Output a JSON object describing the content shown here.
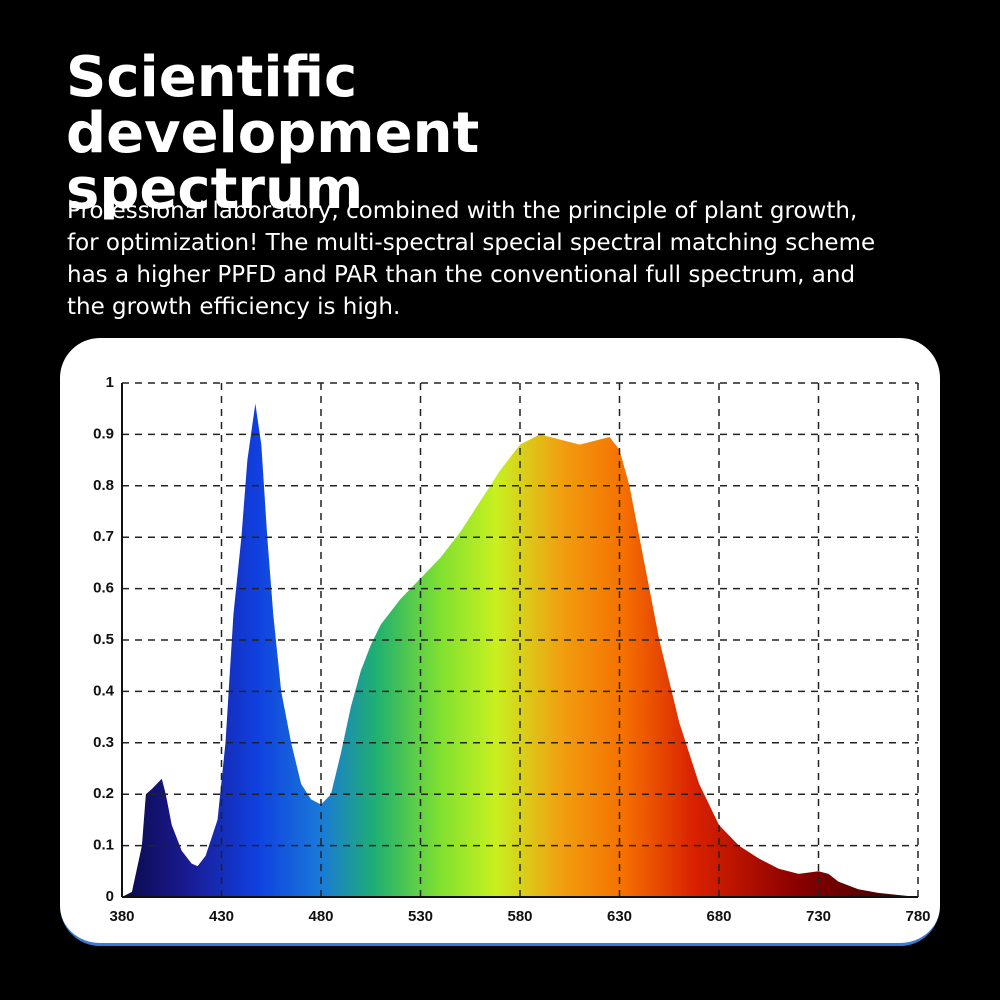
{
  "chart_data": {
    "type": "area",
    "title": "Scientific development spectrum",
    "subtitle": "Professional laboratory, combined with the principle of plant growth, for optimization! The multi-spectral special spectral matching scheme has a higher PPFD and PAR than the conventional full spectrum, and the growth efficiency is high.",
    "x": [
      380,
      385,
      390,
      392,
      395,
      400,
      402,
      405,
      410,
      415,
      418,
      422,
      428,
      432,
      436,
      440,
      443,
      447,
      450,
      453,
      456,
      460,
      465,
      470,
      475,
      480,
      485,
      490,
      495,
      500,
      505,
      510,
      520,
      530,
      540,
      550,
      560,
      570,
      580,
      590,
      600,
      610,
      620,
      625,
      630,
      635,
      640,
      645,
      650,
      660,
      670,
      680,
      690,
      700,
      710,
      720,
      730,
      735,
      740,
      750,
      760,
      770,
      780
    ],
    "values": [
      0,
      0.01,
      0.1,
      0.2,
      0.21,
      0.23,
      0.2,
      0.14,
      0.09,
      0.065,
      0.06,
      0.08,
      0.15,
      0.3,
      0.55,
      0.7,
      0.85,
      0.96,
      0.88,
      0.7,
      0.55,
      0.4,
      0.3,
      0.22,
      0.19,
      0.18,
      0.2,
      0.28,
      0.37,
      0.44,
      0.49,
      0.53,
      0.58,
      0.62,
      0.66,
      0.71,
      0.77,
      0.83,
      0.88,
      0.9,
      0.89,
      0.88,
      0.89,
      0.895,
      0.87,
      0.8,
      0.7,
      0.6,
      0.5,
      0.34,
      0.22,
      0.14,
      0.1,
      0.075,
      0.055,
      0.045,
      0.05,
      0.045,
      0.03,
      0.015,
      0.008,
      0.004,
      0
    ],
    "xlim": [
      380,
      780
    ],
    "xticks": [
      380,
      430,
      480,
      530,
      580,
      630,
      680,
      730,
      780
    ],
    "ylim": [
      0,
      1
    ],
    "yticks": [
      0,
      0.1,
      0.2,
      0.3,
      0.4,
      0.5,
      0.6,
      0.7,
      0.8,
      0.9,
      1
    ],
    "grid": true
  }
}
